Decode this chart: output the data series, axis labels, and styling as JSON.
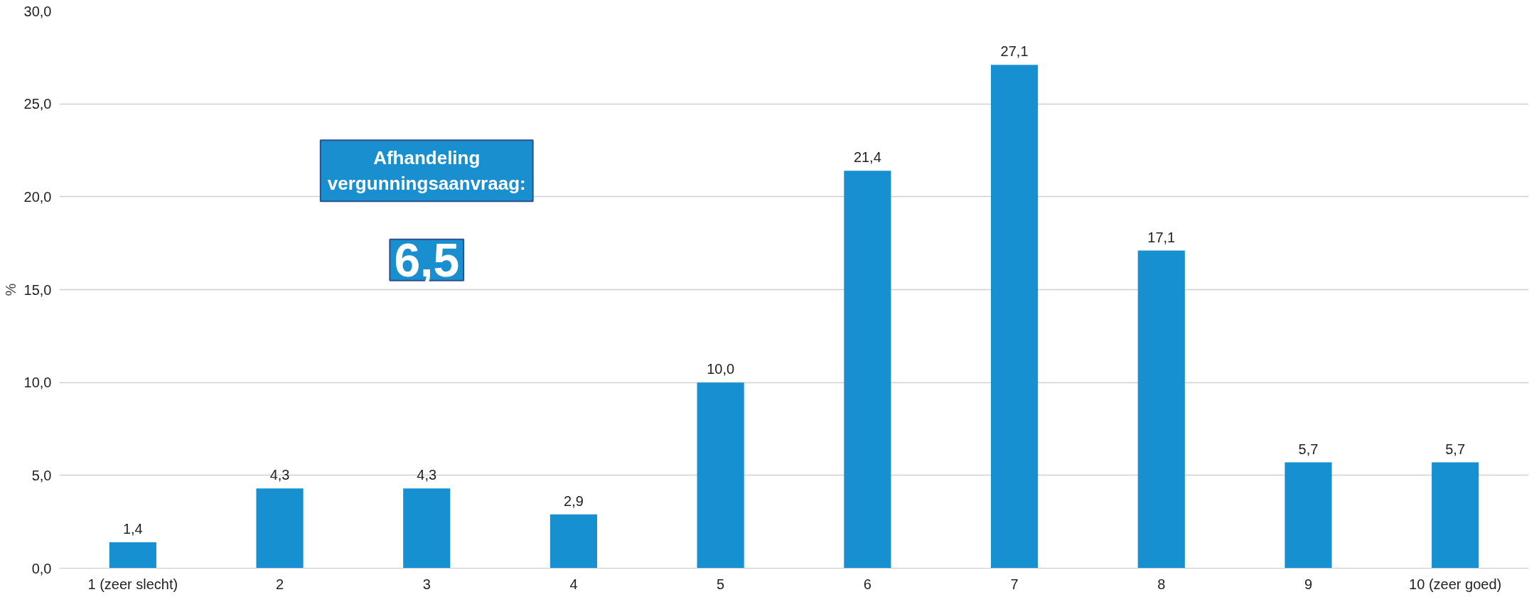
{
  "chart_data": {
    "type": "bar",
    "ylabel": "%",
    "categories": [
      "1 (zeer slecht)",
      "2",
      "3",
      "4",
      "5",
      "6",
      "7",
      "8",
      "9",
      "10 (zeer goed)"
    ],
    "values": [
      1.4,
      4.3,
      4.3,
      2.9,
      10.0,
      21.4,
      27.1,
      17.1,
      5.7,
      5.7
    ],
    "value_labels": [
      "1,4",
      "4,3",
      "4,3",
      "2,9",
      "10,0",
      "21,4",
      "27,1",
      "17,1",
      "5,7",
      "5,7"
    ],
    "color": "#1690d0",
    "ylim": [
      0,
      30
    ],
    "yticks": [
      {
        "value": 0,
        "label": "0,0"
      },
      {
        "value": 5,
        "label": "5,0"
      },
      {
        "value": 10,
        "label": "10,0"
      },
      {
        "value": 15,
        "label": "15,0"
      },
      {
        "value": 20,
        "label": "20,0"
      },
      {
        "value": 25,
        "label": "25,0"
      },
      {
        "value": 30,
        "label": "30,0"
      }
    ],
    "grid": "y",
    "annotations": [
      "Afhandeling vergunningsaanvraag:",
      "6,5"
    ]
  }
}
